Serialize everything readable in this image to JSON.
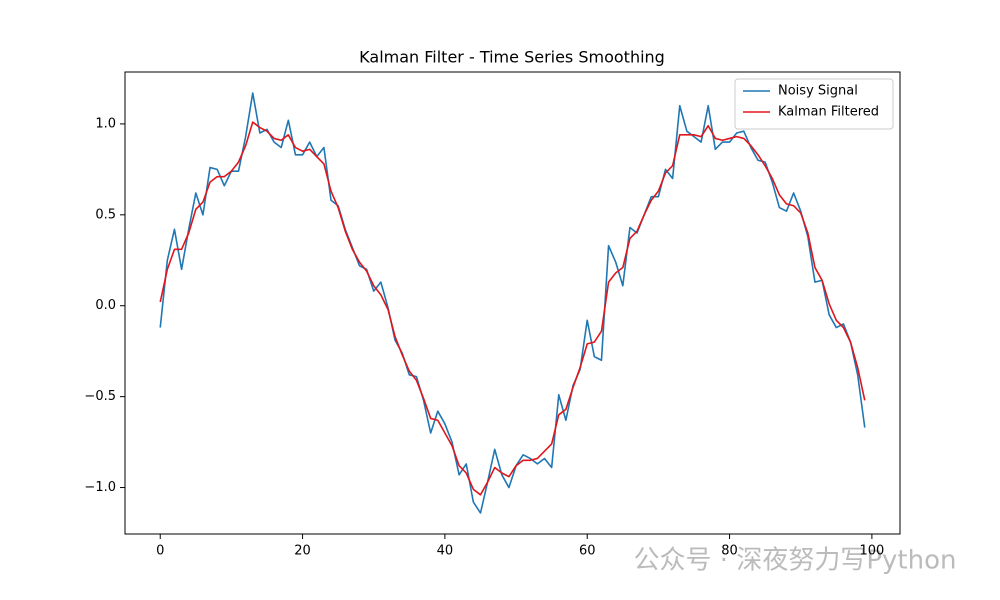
{
  "chart_data": {
    "type": "line",
    "title": "Kalman Filter - Time Series Smoothing",
    "x": [
      0,
      1,
      2,
      3,
      4,
      5,
      6,
      7,
      8,
      9,
      10,
      11,
      12,
      13,
      14,
      15,
      16,
      17,
      18,
      19,
      20,
      21,
      22,
      23,
      24,
      25,
      26,
      27,
      28,
      29,
      30,
      31,
      32,
      33,
      34,
      35,
      36,
      37,
      38,
      39,
      40,
      41,
      42,
      43,
      44,
      45,
      46,
      47,
      48,
      49,
      50,
      51,
      52,
      53,
      54,
      55,
      56,
      57,
      58,
      59,
      60,
      61,
      62,
      63,
      64,
      65,
      66,
      67,
      68,
      69,
      70,
      71,
      72,
      73,
      74,
      75,
      76,
      77,
      78,
      79,
      80,
      81,
      82,
      83,
      84,
      85,
      86,
      87,
      88,
      89,
      90,
      91,
      92,
      93,
      94,
      95,
      96,
      97,
      98,
      99
    ],
    "series": [
      {
        "name": "Noisy Signal",
        "color": "#1f77b4",
        "values": [
          -0.12,
          0.25,
          0.42,
          0.2,
          0.42,
          0.62,
          0.5,
          0.76,
          0.75,
          0.66,
          0.74,
          0.74,
          0.93,
          1.17,
          0.95,
          0.97,
          0.9,
          0.87,
          1.02,
          0.83,
          0.83,
          0.9,
          0.82,
          0.87,
          0.58,
          0.55,
          0.42,
          0.32,
          0.22,
          0.2,
          0.08,
          0.13,
          -0.01,
          -0.19,
          -0.26,
          -0.38,
          -0.39,
          -0.52,
          -0.7,
          -0.58,
          -0.65,
          -0.75,
          -0.93,
          -0.87,
          -1.08,
          -1.14,
          -0.97,
          -0.79,
          -0.93,
          -1.0,
          -0.88,
          -0.82,
          -0.84,
          -0.87,
          -0.84,
          -0.89,
          -0.49,
          -0.63,
          -0.44,
          -0.35,
          -0.08,
          -0.28,
          -0.3,
          0.33,
          0.24,
          0.11,
          0.43,
          0.4,
          0.5,
          0.6,
          0.6,
          0.75,
          0.7,
          1.1,
          0.96,
          0.93,
          0.9,
          1.1,
          0.86,
          0.9,
          0.9,
          0.95,
          0.96,
          0.87,
          0.8,
          0.79,
          0.68,
          0.54,
          0.52,
          0.62,
          0.52,
          0.38,
          0.13,
          0.14,
          -0.05,
          -0.12,
          -0.1,
          -0.2,
          -0.38,
          -0.67
        ]
      },
      {
        "name": "Kalman Filtered",
        "color": "#e0161b",
        "values": [
          0.02,
          0.2,
          0.31,
          0.31,
          0.4,
          0.53,
          0.57,
          0.68,
          0.71,
          0.71,
          0.74,
          0.79,
          0.88,
          1.01,
          0.98,
          0.96,
          0.92,
          0.91,
          0.94,
          0.87,
          0.85,
          0.86,
          0.82,
          0.78,
          0.63,
          0.54,
          0.41,
          0.31,
          0.24,
          0.19,
          0.11,
          0.06,
          -0.02,
          -0.17,
          -0.27,
          -0.36,
          -0.41,
          -0.51,
          -0.62,
          -0.63,
          -0.7,
          -0.77,
          -0.88,
          -0.92,
          -1.01,
          -1.04,
          -0.97,
          -0.89,
          -0.92,
          -0.94,
          -0.88,
          -0.85,
          -0.85,
          -0.84,
          -0.8,
          -0.76,
          -0.6,
          -0.57,
          -0.45,
          -0.34,
          -0.21,
          -0.2,
          -0.14,
          0.13,
          0.18,
          0.21,
          0.37,
          0.41,
          0.5,
          0.58,
          0.63,
          0.73,
          0.77,
          0.94,
          0.94,
          0.94,
          0.93,
          0.99,
          0.92,
          0.91,
          0.92,
          0.93,
          0.92,
          0.88,
          0.83,
          0.77,
          0.7,
          0.61,
          0.56,
          0.55,
          0.51,
          0.4,
          0.21,
          0.14,
          0.01,
          -0.08,
          -0.12,
          -0.2,
          -0.34,
          -0.52
        ]
      }
    ],
    "xlim": [
      -4.95,
      103.95
    ],
    "xticks": [
      0,
      20,
      40,
      60,
      80,
      100
    ],
    "ylim": [
      -1.2555,
      1.2855
    ],
    "yticks": [
      {
        "value": -1,
        "label": "−1.0"
      },
      {
        "value": -0.5,
        "label": "−0.5"
      },
      {
        "value": 0,
        "label": "0.0"
      },
      {
        "value": 0.5,
        "label": "0.5"
      },
      {
        "value": 1,
        "label": "1.0"
      }
    ],
    "legend": "upper right",
    "annotation": "公众号 · 深夜努力写Python"
  }
}
